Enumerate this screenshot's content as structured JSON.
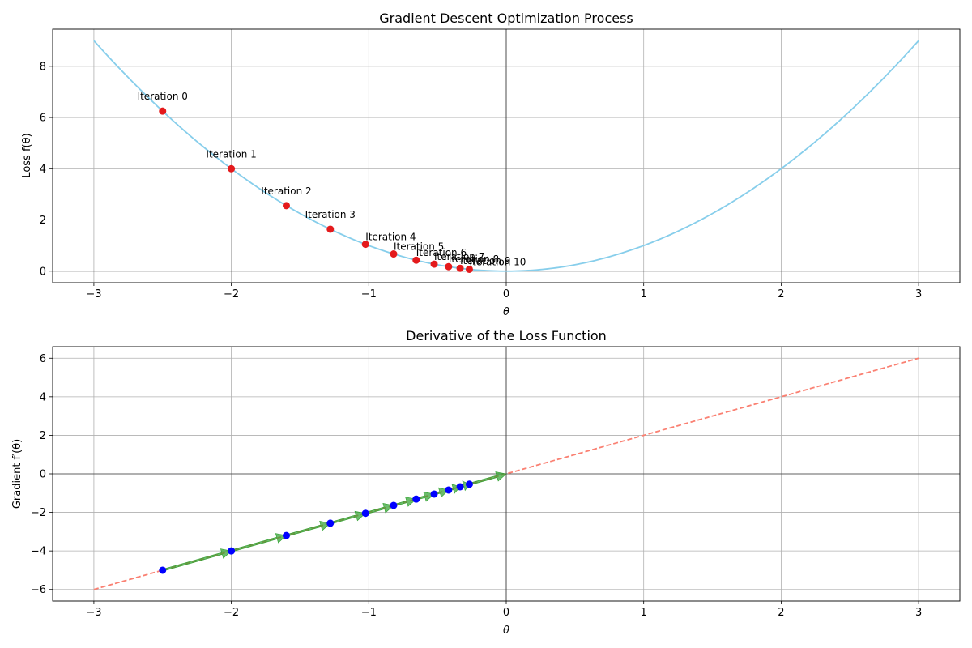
{
  "chart_data": [
    {
      "type": "line",
      "title": "Gradient Descent Optimization Process",
      "xlabel": "θ",
      "ylabel": "Loss f(θ)",
      "xlim": [
        -3.3,
        3.3
      ],
      "ylim": [
        -0.45,
        9.45
      ],
      "xticks": [
        -3,
        -2,
        -1,
        0,
        1,
        2,
        3
      ],
      "xtick_labels": [
        "−3",
        "−2",
        "−1",
        "0",
        "1",
        "2",
        "3"
      ],
      "yticks": [
        0,
        2,
        4,
        6,
        8
      ],
      "ytick_labels": [
        "0",
        "2",
        "4",
        "6",
        "8"
      ],
      "grid": true,
      "curve": {
        "function": "theta^2",
        "x_range": [
          -3,
          3
        ],
        "color": "#87ceeb"
      },
      "iterations": {
        "color": "#e41a1c",
        "points": [
          {
            "label": "Iteration 0",
            "x": -2.5,
            "y": 6.25
          },
          {
            "label": "Iteration 1",
            "x": -2.0,
            "y": 4.0
          },
          {
            "label": "Iteration 2",
            "x": -1.6,
            "y": 2.56
          },
          {
            "label": "Iteration 3",
            "x": -1.28,
            "y": 1.6384
          },
          {
            "label": "Iteration 4",
            "x": -1.024,
            "y": 1.0486
          },
          {
            "label": "Iteration 5",
            "x": -0.8192,
            "y": 0.6711
          },
          {
            "label": "Iteration 6",
            "x": -0.6554,
            "y": 0.4295
          },
          {
            "label": "Iteration 7",
            "x": -0.5243,
            "y": 0.2749
          },
          {
            "label": "Iteration 8",
            "x": -0.4194,
            "y": 0.1759
          },
          {
            "label": "Iteration 9",
            "x": -0.3355,
            "y": 0.1126
          },
          {
            "label": "Iteration 10",
            "x": -0.2684,
            "y": 0.0721
          }
        ]
      }
    },
    {
      "type": "line",
      "title": "Derivative of the Loss Function",
      "xlabel": "θ",
      "ylabel": "Gradient f′(θ)",
      "xlim": [
        -3.3,
        3.3
      ],
      "ylim": [
        -6.6,
        6.6
      ],
      "xticks": [
        -3,
        -2,
        -1,
        0,
        1,
        2,
        3
      ],
      "xtick_labels": [
        "−3",
        "−2",
        "−1",
        "0",
        "1",
        "2",
        "3"
      ],
      "yticks": [
        -6,
        -4,
        -2,
        0,
        2,
        4,
        6
      ],
      "ytick_labels": [
        "−6",
        "−4",
        "−2",
        "0",
        "2",
        "4",
        "6"
      ],
      "grid": true,
      "curve": {
        "function": "2*theta",
        "x_range": [
          -3,
          3
        ],
        "color": "#fa8072",
        "style": "dashed"
      },
      "gradient_points": {
        "color": "#0000ff",
        "x": [
          -2.5,
          -2.0,
          -1.6,
          -1.28,
          -1.024,
          -0.8192,
          -0.6554,
          -0.5243,
          -0.4194,
          -0.3355,
          -0.2684
        ],
        "y": [
          -5.0,
          -4.0,
          -3.2,
          -2.56,
          -2.048,
          -1.6384,
          -1.3107,
          -1.0486,
          -0.8389,
          -0.6711,
          -0.5369
        ]
      },
      "arrows": {
        "color": "#2ca02c",
        "count": 11
      }
    }
  ]
}
